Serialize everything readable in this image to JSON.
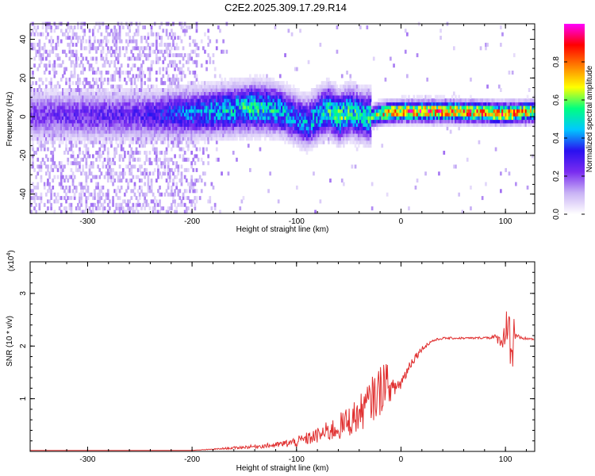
{
  "figure": {
    "title": "C2E2.2025.309.17.29.R14"
  },
  "chart_data": [
    {
      "type": "heatmap",
      "xlabel": "Height of straight line (km)",
      "ylabel": "Frequency (Hz)",
      "xlim": [
        -355,
        128
      ],
      "ylim": [
        -50,
        48
      ],
      "x_ticks": [
        -300,
        -200,
        -100,
        0,
        100
      ],
      "y_ticks": [
        -40,
        -20,
        0,
        20,
        40
      ],
      "x_tick_labels": [
        "-300",
        "-200",
        "-100",
        "0",
        "100"
      ],
      "y_tick_labels": [
        "-40",
        "-20",
        "0",
        "20",
        "40"
      ],
      "grid": false,
      "colorbar": {
        "label": "Normalized spectral amplitude",
        "range": [
          0,
          1
        ],
        "ticks": [
          0,
          0.2,
          0.4,
          0.6,
          0.8
        ],
        "tick_labels": [
          "0.0",
          "0.2",
          "0.4",
          "0.6",
          "0.8"
        ],
        "colormap": [
          "#ffffff",
          "#c9b3f5",
          "#7a2cf0",
          "#2a10f0",
          "#00c8ff",
          "#00ff80",
          "#ffff00",
          "#ff8000",
          "#ff0000",
          "#ff00ff"
        ]
      },
      "ridge": {
        "height_km": [
          -355,
          -300,
          -250,
          -200,
          -180,
          -160,
          -140,
          -120,
          -110,
          -100,
          -90,
          -80,
          -70,
          -60,
          -50,
          -40,
          -30,
          -20,
          0,
          50,
          100,
          128
        ],
        "frequency_hz": [
          0,
          0,
          0,
          1,
          2,
          3,
          4,
          3,
          1,
          -2,
          -4,
          0,
          3,
          -1,
          2,
          0,
          -1,
          1,
          2,
          2,
          1,
          2
        ],
        "peak_amplitude": [
          0.25,
          0.28,
          0.3,
          0.45,
          0.5,
          0.55,
          0.6,
          0.55,
          0.5,
          0.45,
          0.5,
          0.55,
          0.6,
          0.65,
          0.6,
          0.55,
          0.6,
          0.8,
          0.9,
          0.95,
          0.9,
          0.85
        ]
      }
    },
    {
      "type": "line",
      "xlabel": "Height of straight line (km)",
      "ylabel": "SNR (10 * v/v)",
      "y_multiplier_label": "(x10",
      "y_multiplier_exp": "4",
      "y_multiplier_close": ")",
      "xlim": [
        -355,
        128
      ],
      "ylim": [
        0,
        3.6
      ],
      "x_ticks": [
        -300,
        -200,
        -100,
        0,
        100
      ],
      "y_ticks": [
        1,
        2,
        3
      ],
      "x_tick_labels": [
        "-300",
        "-200",
        "-100",
        "0",
        "100"
      ],
      "y_tick_labels": [
        "1",
        "2",
        "3"
      ],
      "grid": false,
      "series": [
        {
          "color": "#e03030",
          "x": [
            -355,
            -300,
            -250,
            -200,
            -180,
            -150,
            -120,
            -100,
            -80,
            -60,
            -40,
            -30,
            -20,
            -15,
            -10,
            0,
            10,
            20,
            30,
            40,
            50,
            60,
            70,
            80,
            90,
            95,
            100,
            103,
            106,
            108,
            110,
            115,
            128
          ],
          "y": [
            0.02,
            0.02,
            0.02,
            0.02,
            0.04,
            0.08,
            0.12,
            0.18,
            0.3,
            0.45,
            0.7,
            0.95,
            1.15,
            1.4,
            1.15,
            1.3,
            1.7,
            1.95,
            2.1,
            2.15,
            2.15,
            2.15,
            2.15,
            2.16,
            2.17,
            2.1,
            2.2,
            2.8,
            1.5,
            2.5,
            2.15,
            2.15,
            2.13
          ],
          "noise_amplitude": [
            0,
            0,
            0,
            0,
            0.01,
            0.03,
            0.05,
            0.1,
            0.15,
            0.25,
            0.35,
            0.4,
            0.5,
            0.45,
            0.2,
            0.15,
            0.1,
            0.05,
            0.03,
            0.02,
            0.02,
            0.02,
            0.02,
            0.02,
            0.05,
            0.12,
            0.25,
            0.6,
            0.8,
            0.6,
            0.1,
            0.03,
            0.02
          ]
        }
      ]
    }
  ]
}
